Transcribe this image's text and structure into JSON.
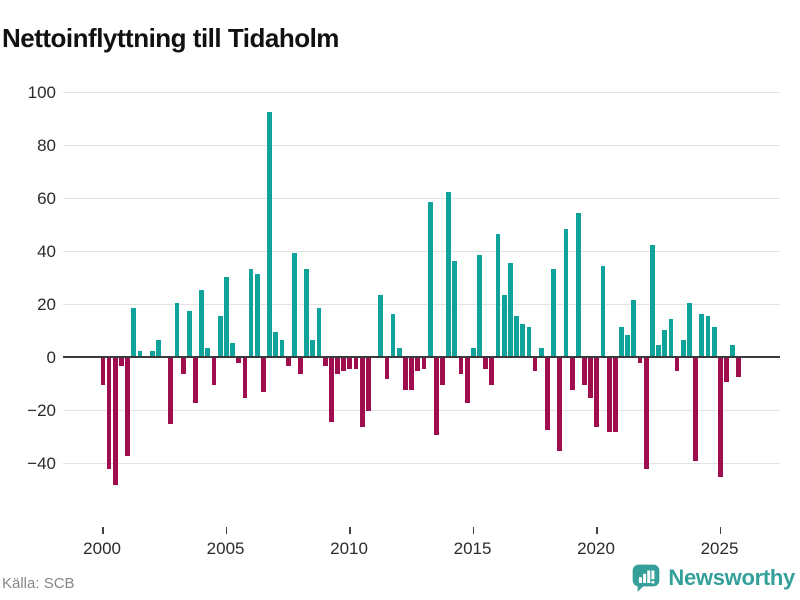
{
  "title": "Nettoinflyttning till Tidaholm",
  "source": "Källa: SCB",
  "logo": {
    "brand": "Newsworthy",
    "color": "#35a099"
  },
  "chart_data": {
    "type": "bar",
    "title": "Nettoinflyttning till Tidaholm",
    "ylabel": "",
    "xlabel": "",
    "frequency": "quarterly",
    "start": "2000-Q1",
    "end": "2025-Q4",
    "grid": true,
    "ylim": [
      -52,
      104
    ],
    "x_tick_years": [
      2000,
      2005,
      2010,
      2015,
      2020,
      2025
    ],
    "y_ticks": [
      {
        "value": 100,
        "label": "100"
      },
      {
        "value": 80,
        "label": "80"
      },
      {
        "value": 60,
        "label": "60"
      },
      {
        "value": 40,
        "label": "40"
      },
      {
        "value": 20,
        "label": "20"
      },
      {
        "value": 0,
        "label": "0"
      },
      {
        "value": -20,
        "label": "−20"
      },
      {
        "value": -40,
        "label": "−40"
      }
    ],
    "colors": {
      "positive": "#0fa39b",
      "negative": "#9e0d4e",
      "gridline": "#e2e2e2",
      "zero_line": "#3a3a3a",
      "axis_text": "#2b2b2b",
      "source_text": "#888888",
      "title_text": "#111111"
    },
    "values_by_year": {
      "2000": [
        -10,
        -42,
        -48,
        -3
      ],
      "2001": [
        -37,
        18,
        2,
        0
      ],
      "2002": [
        2,
        6,
        0,
        -25
      ],
      "2003": [
        20,
        -6,
        17,
        -17
      ],
      "2004": [
        25,
        3,
        -10,
        15
      ],
      "2005": [
        30,
        5,
        -2,
        -15
      ],
      "2006": [
        33,
        31,
        -13,
        92
      ],
      "2007": [
        9,
        6,
        -3,
        39
      ],
      "2008": [
        -6,
        33,
        6,
        18
      ],
      "2009": [
        -3,
        -24,
        -6,
        -5
      ],
      "2010": [
        -4,
        -4,
        -26,
        -20
      ],
      "2011": [
        0,
        23,
        -8,
        16
      ],
      "2012": [
        3,
        -12,
        -12,
        -5
      ],
      "2013": [
        -4,
        58,
        -29,
        -10
      ],
      "2014": [
        62,
        36,
        -6,
        -17
      ],
      "2015": [
        3,
        38,
        -4,
        -10
      ],
      "2016": [
        46,
        23,
        35,
        15
      ],
      "2017": [
        12,
        11,
        -5,
        3
      ],
      "2018": [
        -27,
        33,
        -35,
        48
      ],
      "2019": [
        -12,
        54,
        -10,
        -15
      ],
      "2020": [
        -26,
        34,
        -28,
        -28
      ],
      "2021": [
        11,
        8,
        21,
        -2
      ],
      "2022": [
        -42,
        42,
        4,
        10
      ],
      "2023": [
        14,
        -5,
        6,
        20
      ],
      "2024": [
        -39,
        16,
        15,
        11
      ],
      "2025": [
        -45,
        -9,
        4,
        -7
      ]
    }
  }
}
